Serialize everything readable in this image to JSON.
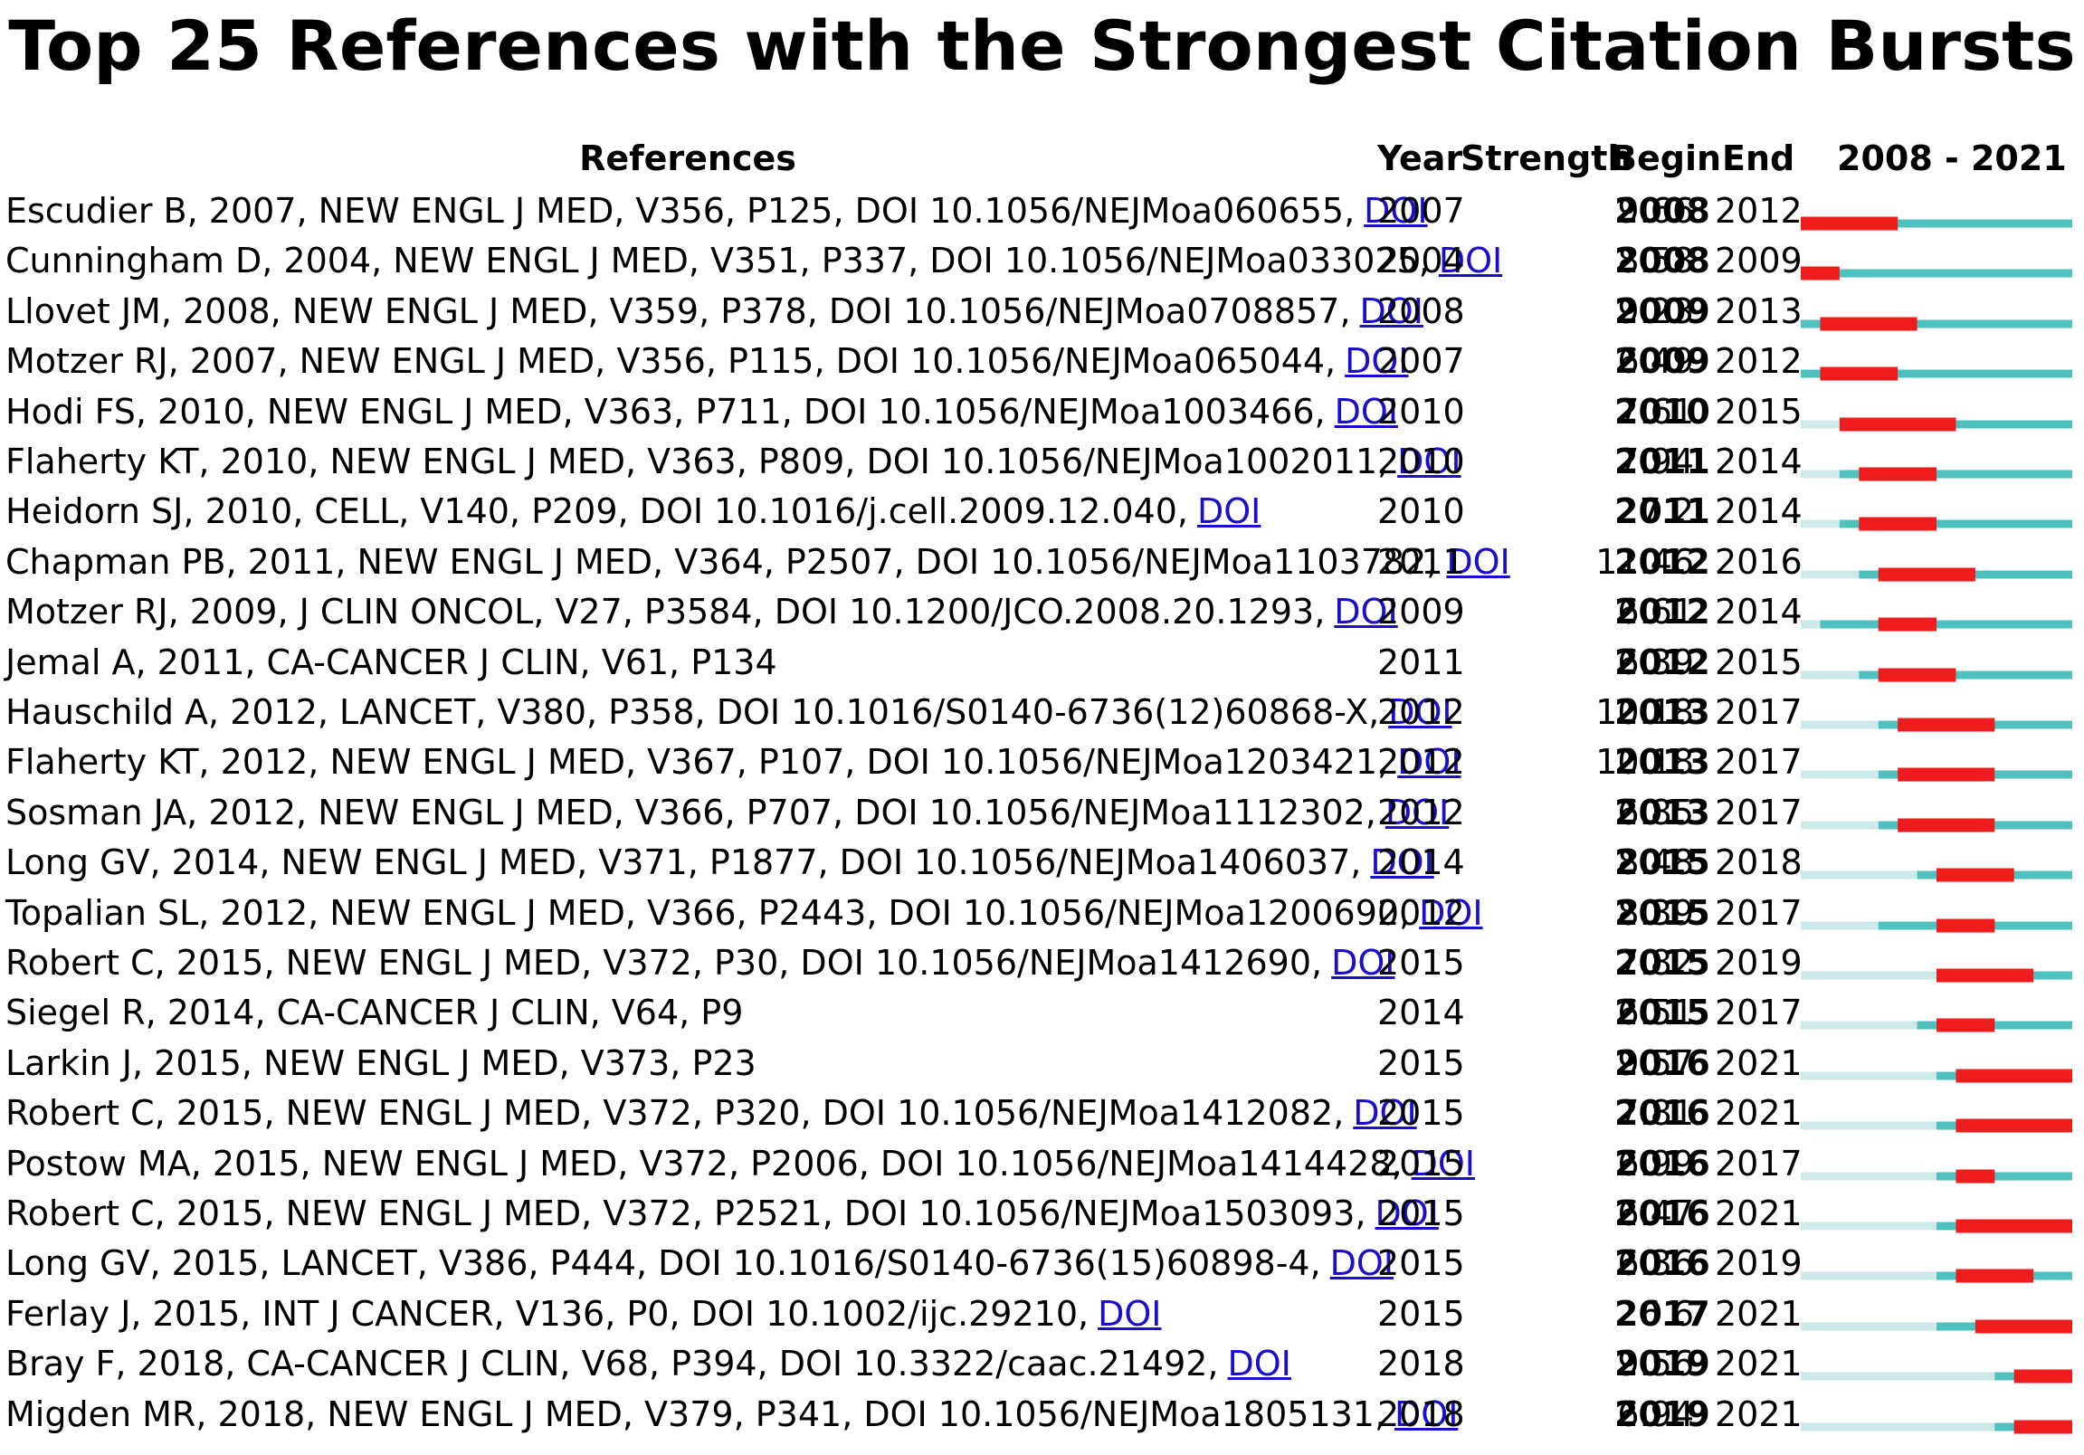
{
  "chart_data": {
    "type": "table",
    "title": "Top 25 References with the Strongest Citation Bursts",
    "columns": {
      "references": "References",
      "year": "Year",
      "strength": "Strength",
      "begin": "Begin",
      "end": "End",
      "range": "2008 - 2021"
    },
    "timeline": {
      "start": 2008,
      "end": 2021
    },
    "colors": {
      "burst": "#ee1c1c",
      "active": "#4fc1bf",
      "inactive": "#cde9ea"
    },
    "doi_label": "DOI",
    "rows": [
      {
        "ref": "Escudier B, 2007, NEW ENGL J MED, V356, P125, DOI 10.1056/NEJMoa060655,",
        "doi": true,
        "year": "2007",
        "strength": "9.66",
        "begin": "2008",
        "end": "2012"
      },
      {
        "ref": "Cunningham D, 2004, NEW ENGL J MED, V351, P337, DOI 10.1056/NEJMoa033025,",
        "doi": true,
        "year": "2004",
        "strength": "8.58",
        "begin": "2008",
        "end": "2009"
      },
      {
        "ref": "Llovet JM, 2008, NEW ENGL J MED, V359, P378, DOI 10.1056/NEJMoa0708857,",
        "doi": true,
        "year": "2008",
        "strength": "9.23",
        "begin": "2009",
        "end": "2013"
      },
      {
        "ref": "Motzer RJ, 2007, NEW ENGL J MED, V356, P115, DOI 10.1056/NEJMoa065044,",
        "doi": true,
        "year": "2007",
        "strength": "6.49",
        "begin": "2009",
        "end": "2012"
      },
      {
        "ref": "Hodi FS, 2010, NEW ENGL J MED, V363, P711, DOI 10.1056/NEJMoa1003466,",
        "doi": true,
        "year": "2010",
        "strength": "7.61",
        "begin": "2010",
        "end": "2015"
      },
      {
        "ref": "Flaherty KT, 2010, NEW ENGL J MED, V363, P809, DOI 10.1056/NEJMoa1002011,",
        "doi": true,
        "year": "2010",
        "strength": "7.94",
        "begin": "2011",
        "end": "2014"
      },
      {
        "ref": "Heidorn SJ, 2010, CELL, V140, P209, DOI 10.1016/j.cell.2009.12.040,",
        "doi": true,
        "year": "2010",
        "strength": "7.2",
        "begin": "2011",
        "end": "2014"
      },
      {
        "ref": "Chapman PB, 2011, NEW ENGL J MED, V364, P2507, DOI 10.1056/NEJMoa1103782,",
        "doi": true,
        "year": "2011",
        "strength": "11.46",
        "begin": "2012",
        "end": "2016"
      },
      {
        "ref": "Motzer RJ, 2009, J CLIN ONCOL, V27, P3584, DOI 10.1200/JCO.2008.20.1293,",
        "doi": true,
        "year": "2009",
        "strength": "6.61",
        "begin": "2012",
        "end": "2014"
      },
      {
        "ref": "Jemal A, 2011, CA-CANCER J CLIN, V61, P134",
        "doi": false,
        "year": "2011",
        "strength": "6.39",
        "begin": "2012",
        "end": "2015"
      },
      {
        "ref": "Hauschild A, 2012, LANCET, V380, P358, DOI 10.1016/S0140-6736(12)60868-X,",
        "doi": true,
        "year": "2012",
        "strength": "10.18",
        "begin": "2013",
        "end": "2017"
      },
      {
        "ref": "Flaherty KT, 2012, NEW ENGL J MED, V367, P107, DOI 10.1056/NEJMoa1203421,",
        "doi": true,
        "year": "2012",
        "strength": "10.18",
        "begin": "2013",
        "end": "2017"
      },
      {
        "ref": "Sosman JA, 2012, NEW ENGL J MED, V366, P707, DOI 10.1056/NEJMoa1112302,",
        "doi": true,
        "year": "2012",
        "strength": "6.85",
        "begin": "2013",
        "end": "2017"
      },
      {
        "ref": "Long GV, 2014, NEW ENGL J MED, V371, P1877, DOI 10.1056/NEJMoa1406037,",
        "doi": true,
        "year": "2014",
        "strength": "8.48",
        "begin": "2015",
        "end": "2018"
      },
      {
        "ref": "Topalian SL, 2012, NEW ENGL J MED, V366, P2443, DOI 10.1056/NEJMoa1200690,",
        "doi": true,
        "year": "2012",
        "strength": "8.39",
        "begin": "2015",
        "end": "2017"
      },
      {
        "ref": "Robert C, 2015, NEW ENGL J MED, V372, P30, DOI 10.1056/NEJMoa1412690,",
        "doi": true,
        "year": "2015",
        "strength": "7.82",
        "begin": "2015",
        "end": "2019"
      },
      {
        "ref": "Siegel R, 2014, CA-CANCER J CLIN, V64, P9",
        "doi": false,
        "year": "2014",
        "strength": "6.51",
        "begin": "2015",
        "end": "2017"
      },
      {
        "ref": "Larkin J, 2015, NEW ENGL J MED, V373, P23",
        "doi": false,
        "year": "2015",
        "strength": "9.57",
        "begin": "2016",
        "end": "2021"
      },
      {
        "ref": "Robert C, 2015, NEW ENGL J MED, V372, P320, DOI 10.1056/NEJMoa1412082,",
        "doi": true,
        "year": "2015",
        "strength": "7.81",
        "begin": "2016",
        "end": "2021"
      },
      {
        "ref": "Postow MA, 2015, NEW ENGL J MED, V372, P2006, DOI 10.1056/NEJMoa1414428,",
        "doi": true,
        "year": "2015",
        "strength": "6.99",
        "begin": "2016",
        "end": "2017"
      },
      {
        "ref": "Robert C, 2015, NEW ENGL J MED, V372, P2521, DOI 10.1056/NEJMoa1503093,",
        "doi": true,
        "year": "2015",
        "strength": "6.47",
        "begin": "2016",
        "end": "2021"
      },
      {
        "ref": "Long GV, 2015, LANCET, V386, P444, DOI 10.1016/S0140-6736(15)60898-4,",
        "doi": true,
        "year": "2015",
        "strength": "6.36",
        "begin": "2016",
        "end": "2019"
      },
      {
        "ref": "Ferlay J, 2015, INT J CANCER, V136, P0, DOI 10.1002/ijc.29210,",
        "doi": true,
        "year": "2015",
        "strength": "6.6",
        "begin": "2017",
        "end": "2021"
      },
      {
        "ref": "Bray F, 2018, CA-CANCER J CLIN, V68, P394, DOI 10.3322/caac.21492,",
        "doi": true,
        "year": "2018",
        "strength": "9.56",
        "begin": "2019",
        "end": "2021"
      },
      {
        "ref": "Migden MR, 2018, NEW ENGL J MED, V379, P341, DOI 10.1056/NEJMoa1805131,",
        "doi": true,
        "year": "2018",
        "strength": "6.94",
        "begin": "2019",
        "end": "2021"
      }
    ]
  }
}
